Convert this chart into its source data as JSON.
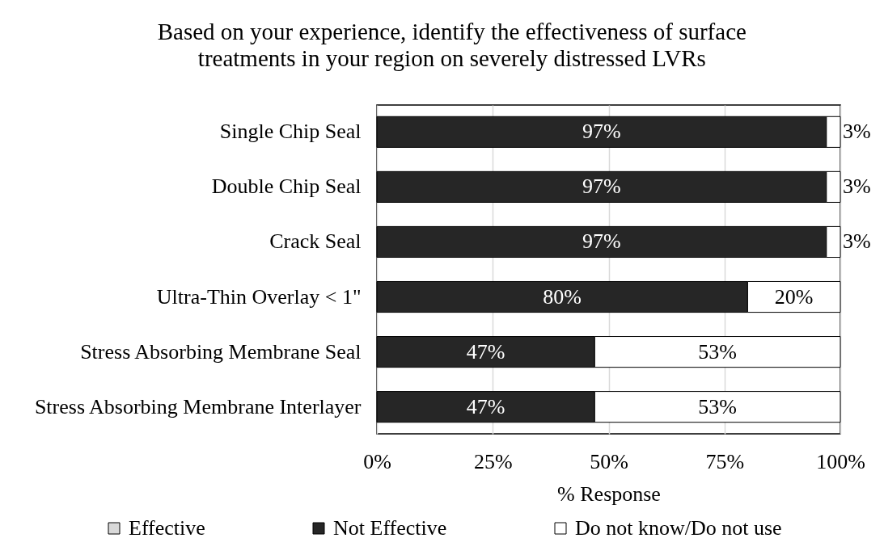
{
  "chart_data": {
    "type": "bar",
    "orientation": "horizontal",
    "stacked": true,
    "title": "Based on your experience, identify the effectiveness of surface treatments in your region on severely distressed LVRs",
    "categories": [
      "Single Chip Seal",
      "Double Chip Seal",
      "Crack Seal",
      "Ultra-Thin Overlay < 1\"",
      "Stress Absorbing Membrane Seal",
      "Stress Absorbing Membrane Interlayer"
    ],
    "series": [
      {
        "name": "Effective",
        "color": "#d9d9d9",
        "values": [
          0,
          0,
          0,
          0,
          0,
          0
        ],
        "value_labels": [
          null,
          null,
          null,
          null,
          null,
          null
        ]
      },
      {
        "name": "Not Effective",
        "color": "#262626",
        "values": [
          97,
          97,
          97,
          80,
          47,
          47
        ],
        "value_labels": [
          "97%",
          "97%",
          "97%",
          "80%",
          "47%",
          "47%"
        ]
      },
      {
        "name": "Do not know/Do not use",
        "color": "#ffffff",
        "values": [
          3,
          3,
          3,
          20,
          53,
          53
        ],
        "value_labels": [
          "3%",
          "3%",
          "3%",
          "20%",
          "53%",
          "53%"
        ]
      }
    ],
    "xlabel": "% Response",
    "xlim": [
      0,
      100
    ],
    "xticks": [
      {
        "value": 0,
        "label": "0%"
      },
      {
        "value": 25,
        "label": "25%"
      },
      {
        "value": 50,
        "label": "50%"
      },
      {
        "value": 75,
        "label": "75%"
      },
      {
        "value": 100,
        "label": "100%"
      }
    ],
    "grid": "x",
    "legend": "bottom"
  }
}
